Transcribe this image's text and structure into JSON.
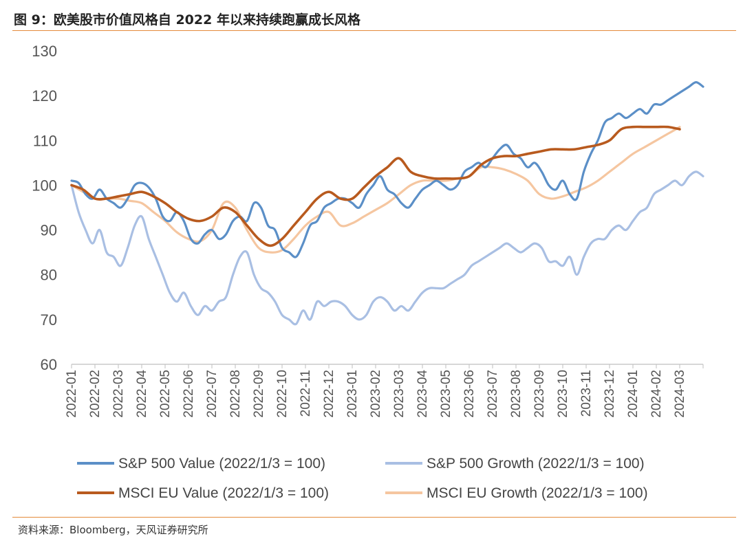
{
  "header": {
    "title": "图 9：欧美股市价值风格自 2022 年以来持续跑赢成长风格"
  },
  "footer": {
    "source": "资料来源：Bloomberg，天风证券研究所"
  },
  "chart_data": {
    "type": "line",
    "title": "图 9：欧美股市价值风格自 2022 年以来持续跑赢成长风格",
    "xlabel": "",
    "ylabel": "",
    "ylim": [
      60,
      130
    ],
    "yticks": [
      60,
      70,
      80,
      90,
      100,
      110,
      120,
      130
    ],
    "x_tick_labels": [
      "2022-01",
      "2022-02",
      "2022-03",
      "2022-04",
      "2022-05",
      "2022-06",
      "2022-07",
      "2022-08",
      "2022-09",
      "2022-10",
      "2022-11",
      "2022-12",
      "2023-01",
      "2023-02",
      "2023-03",
      "2023-04",
      "2023-05",
      "2023-06",
      "2023-07",
      "2023-08",
      "2023-09",
      "2023-10",
      "2023-11",
      "2023-12",
      "2024-01",
      "2024-02",
      "2024-03"
    ],
    "x_range": [
      "2022-01",
      "2024-03-end"
    ],
    "grid": false,
    "legend_placement": "bottom",
    "series": [
      {
        "name": "S&P 500 Value (2022/1/3 = 100)",
        "color": "#5b8fc7",
        "x": [
          0,
          0.3,
          0.6,
          0.9,
          1.2,
          1.5,
          1.8,
          2.1,
          2.4,
          2.7,
          3.0,
          3.3,
          3.6,
          3.9,
          4.2,
          4.5,
          4.8,
          5.1,
          5.4,
          5.7,
          6.0,
          6.3,
          6.6,
          6.9,
          7.2,
          7.5,
          7.8,
          8.1,
          8.4,
          8.7,
          9.0,
          9.3,
          9.6,
          9.9,
          10.2,
          10.5,
          10.8,
          11.1,
          11.4,
          11.7,
          12.0,
          12.3,
          12.6,
          12.9,
          13.2,
          13.5,
          13.8,
          14.1,
          14.4,
          14.7,
          15.0,
          15.3,
          15.6,
          15.9,
          16.2,
          16.5,
          16.8,
          17.1,
          17.4,
          17.7,
          18.0,
          18.3,
          18.6,
          18.9,
          19.2,
          19.5,
          19.8,
          20.1,
          20.4,
          20.7,
          21.0,
          21.3,
          21.6,
          21.9,
          22.2,
          22.5,
          22.8,
          23.1,
          23.4,
          23.7,
          24.0,
          24.3,
          24.6,
          24.9,
          25.2,
          25.5,
          25.8,
          26.1,
          26.4,
          26.7,
          27.0
        ],
        "values": [
          101,
          100.5,
          98,
          97,
          99,
          97,
          96,
          95,
          97,
          100,
          100.5,
          99.5,
          97,
          93,
          92,
          94,
          92,
          88,
          87,
          89,
          90,
          88,
          89,
          92,
          93,
          92,
          96,
          95,
          91,
          90,
          86,
          85,
          84,
          87,
          91,
          92,
          95,
          96,
          97,
          97,
          96,
          95,
          98,
          100,
          102,
          99,
          98,
          96,
          95,
          97,
          99,
          100,
          101,
          100,
          99,
          100,
          103,
          104,
          105,
          104,
          106,
          108,
          109,
          107,
          106,
          104,
          105,
          103,
          100,
          99,
          101,
          98,
          97,
          103,
          107,
          110,
          114,
          115,
          116,
          115,
          116,
          117,
          116,
          118,
          118,
          119,
          120,
          121,
          122,
          123,
          122
        ]
      },
      {
        "name": "S&P 500 Growth (2022/1/3 = 100)",
        "color": "#a9bfe3",
        "x": [
          0,
          0.3,
          0.6,
          0.9,
          1.2,
          1.5,
          1.8,
          2.1,
          2.4,
          2.7,
          3.0,
          3.3,
          3.6,
          3.9,
          4.2,
          4.5,
          4.8,
          5.1,
          5.4,
          5.7,
          6.0,
          6.3,
          6.6,
          6.9,
          7.2,
          7.5,
          7.8,
          8.1,
          8.4,
          8.7,
          9.0,
          9.3,
          9.6,
          9.9,
          10.2,
          10.5,
          10.8,
          11.1,
          11.4,
          11.7,
          12.0,
          12.3,
          12.6,
          12.9,
          13.2,
          13.5,
          13.8,
          14.1,
          14.4,
          14.7,
          15.0,
          15.3,
          15.6,
          15.9,
          16.2,
          16.5,
          16.8,
          17.1,
          17.4,
          17.7,
          18.0,
          18.3,
          18.6,
          18.9,
          19.2,
          19.5,
          19.8,
          20.1,
          20.4,
          20.7,
          21.0,
          21.3,
          21.6,
          21.9,
          22.2,
          22.5,
          22.8,
          23.1,
          23.4,
          23.7,
          24.0,
          24.3,
          24.6,
          24.9,
          25.2,
          25.5,
          25.8,
          26.1,
          26.4,
          26.7,
          27.0
        ],
        "values": [
          100,
          94,
          90,
          87,
          90,
          85,
          84,
          82,
          86,
          91,
          93,
          88,
          84,
          80,
          76,
          74,
          76,
          73,
          71,
          73,
          72,
          74,
          75,
          80,
          84,
          85,
          80,
          77,
          76,
          74,
          71,
          70,
          69,
          72,
          70,
          74,
          73,
          74,
          74,
          73,
          71,
          70,
          71,
          74,
          75,
          74,
          72,
          73,
          72,
          74,
          76,
          77,
          77,
          77,
          78,
          79,
          80,
          82,
          83,
          84,
          85,
          86,
          87,
          86,
          85,
          86,
          87,
          86,
          83,
          83,
          82,
          84,
          80,
          84,
          87,
          88,
          88,
          90,
          91,
          90,
          92,
          94,
          95,
          98,
          99,
          100,
          101,
          100,
          102,
          103,
          102
        ]
      },
      {
        "name": "MSCI EU Value (2022/1/3 = 100)",
        "color": "#b85a1e",
        "x": [
          0,
          0.5,
          1.0,
          1.5,
          2.0,
          2.5,
          3.0,
          3.5,
          4.0,
          4.5,
          5.0,
          5.5,
          6.0,
          6.5,
          7.0,
          7.5,
          8.0,
          8.5,
          9.0,
          9.5,
          10.0,
          10.5,
          11.0,
          11.5,
          12.0,
          12.5,
          13.0,
          13.5,
          14.0,
          14.5,
          15.0,
          15.5,
          16.0,
          16.5,
          17.0,
          17.5,
          18.0,
          18.5,
          19.0,
          19.5,
          20.0,
          20.5,
          21.0,
          21.5,
          22.0,
          22.5,
          23.0,
          23.5,
          24.0,
          24.5,
          25.0,
          25.5,
          26.0
        ],
        "values": [
          100,
          99,
          97,
          97,
          97.5,
          98,
          98.5,
          97.5,
          96,
          94,
          92.5,
          92,
          93,
          95,
          94,
          91,
          88,
          86.5,
          88,
          91,
          94,
          97,
          98.5,
          97,
          97,
          99.5,
          102,
          104,
          106,
          103,
          102,
          101.5,
          101.5,
          101.5,
          102,
          104.5,
          106,
          106.5,
          106.5,
          107,
          107.5,
          108,
          108,
          108,
          108.5,
          109,
          110,
          112.5,
          113,
          113,
          113,
          113,
          112.5
        ]
      },
      {
        "name": "MSCI EU Growth (2022/1/3 = 100)",
        "color": "#f5c6a0",
        "x": [
          0,
          0.5,
          1.0,
          1.5,
          2.0,
          2.5,
          3.0,
          3.5,
          4.0,
          4.5,
          5.0,
          5.5,
          6.0,
          6.5,
          7.0,
          7.5,
          8.0,
          8.5,
          9.0,
          9.5,
          10.0,
          10.5,
          11.0,
          11.5,
          12.0,
          12.5,
          13.0,
          13.5,
          14.0,
          14.5,
          15.0,
          15.5,
          16.0,
          16.5,
          17.0,
          17.5,
          18.0,
          18.5,
          19.0,
          19.5,
          20.0,
          20.5,
          21.0,
          21.5,
          22.0,
          22.5,
          23.0,
          23.5,
          24.0,
          24.5,
          25.0,
          25.5,
          26.0
        ],
        "values": [
          100,
          98.5,
          97,
          97,
          97,
          96.5,
          96,
          94,
          92,
          89.5,
          88,
          87.5,
          90,
          96,
          95,
          90,
          86,
          85,
          85.5,
          88,
          91,
          93,
          94,
          91,
          91.5,
          93,
          94.5,
          96,
          98,
          100,
          101,
          101,
          101,
          101.5,
          102,
          104,
          104,
          103.5,
          102.5,
          101,
          98,
          97,
          97.5,
          98.5,
          99.5,
          101,
          103,
          105,
          107,
          108.5,
          110,
          111.5,
          113
        ]
      }
    ]
  }
}
